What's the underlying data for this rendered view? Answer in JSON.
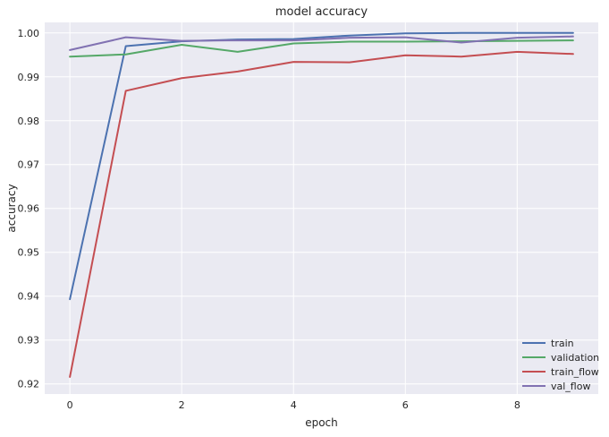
{
  "chart_data": {
    "type": "line",
    "title": "model accuracy",
    "xlabel": "epoch",
    "ylabel": "accuracy",
    "xlim": [
      -0.45,
      9.45
    ],
    "ylim": [
      0.9177,
      1.0024
    ],
    "xticks": [
      0,
      2,
      4,
      6,
      8
    ],
    "yticks": [
      0.92,
      0.93,
      0.94,
      0.95,
      0.96,
      0.97,
      0.98,
      0.99,
      1.0
    ],
    "ytick_labels": [
      "0.92",
      "0.93",
      "0.94",
      "0.95",
      "0.96",
      "0.97",
      "0.98",
      "0.99",
      "1.00"
    ],
    "x": [
      0,
      1,
      2,
      3,
      4,
      5,
      6,
      7,
      8,
      9
    ],
    "grid": true,
    "legend_position": "lower-right",
    "series": [
      {
        "name": "train",
        "color": "#4C72B0",
        "values": [
          0.9393,
          0.997,
          0.9981,
          0.9985,
          0.9986,
          0.9994,
          0.9999,
          1.0,
          1.0,
          1.0
        ]
      },
      {
        "name": "validation",
        "color": "#55A868",
        "values": [
          0.9946,
          0.9951,
          0.9973,
          0.9957,
          0.9976,
          0.998,
          0.998,
          0.9981,
          0.9982,
          0.9983
        ]
      },
      {
        "name": "train_flow",
        "color": "#C44E52",
        "values": [
          0.9216,
          0.9868,
          0.9897,
          0.9912,
          0.9934,
          0.9933,
          0.9949,
          0.9946,
          0.9957,
          0.9952
        ]
      },
      {
        "name": "val_flow",
        "color": "#8172B2",
        "values": [
          0.9961,
          0.999,
          0.9982,
          0.9983,
          0.9983,
          0.9989,
          0.999,
          0.9978,
          0.9989,
          0.9992
        ]
      }
    ]
  }
}
